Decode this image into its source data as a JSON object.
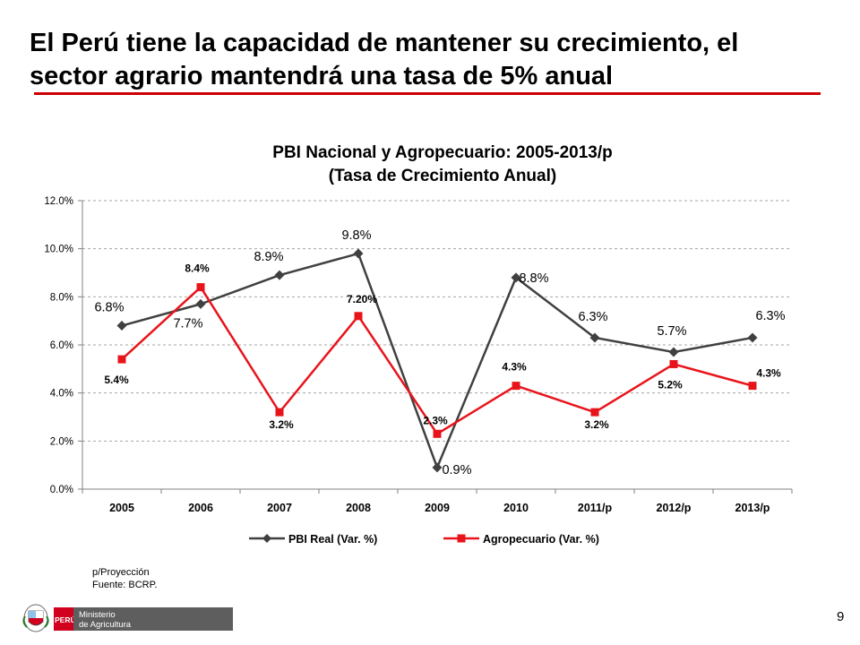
{
  "slide": {
    "title_line1": "El Perú tiene la capacidad de mantener su crecimiento, el",
    "title_line2": "sector agrario mantendrá una tasa de 5% anual",
    "accent_color": "#cc0000",
    "page_number": "9"
  },
  "chart_data": {
    "type": "line",
    "title": "PBI Nacional y Agropecuario: 2005-2013/p",
    "subtitle": "(Tasa de Crecimiento Anual)",
    "categories": [
      "2005",
      "2006",
      "2007",
      "2008",
      "2009",
      "2010",
      "2011/p",
      "2012/p",
      "2013/p"
    ],
    "y_ticks": [
      "0.0%",
      "2.0%",
      "4.0%",
      "6.0%",
      "8.0%",
      "10.0%",
      "12.0%"
    ],
    "ylim": [
      0,
      12
    ],
    "grid": true,
    "legend_position": "bottom",
    "series": [
      {
        "name": "PBI Real (Var. %)",
        "color": "#404040",
        "marker": "diamond",
        "values": [
          6.8,
          7.7,
          8.9,
          9.8,
          0.9,
          8.8,
          6.3,
          5.7,
          6.3
        ],
        "labels": [
          "6.8%",
          "7.7%",
          "8.9%",
          "9.8%",
          "0.9%",
          "8.8%",
          "6.3%",
          "5.7%",
          "6.3%"
        ]
      },
      {
        "name": "Agropecuario (Var. %)",
        "color": "#e8141b",
        "marker": "square",
        "values": [
          5.4,
          8.4,
          3.2,
          7.2,
          2.3,
          4.3,
          3.2,
          5.2,
          4.3
        ],
        "labels": [
          "5.4%",
          "8.4%",
          "3.2%",
          "7.20%",
          "2.3%",
          "4.3%",
          "3.2%",
          "5.2%",
          "4.3%"
        ]
      }
    ]
  },
  "footnote": {
    "line1": "p/Proyección",
    "line2": "Fuente: BCRP."
  },
  "logo": {
    "country": "PERÚ",
    "line1": "Ministerio",
    "line2": "de Agricultura",
    "brand_color": "#d1001f"
  }
}
